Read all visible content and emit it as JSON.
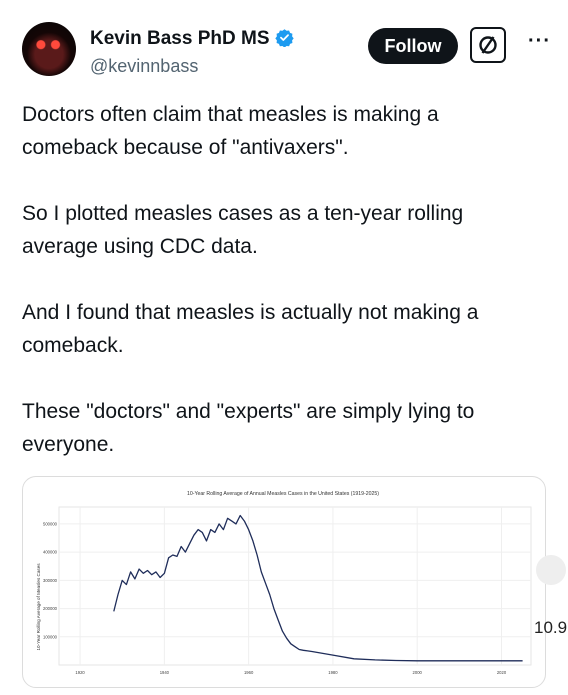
{
  "post": {
    "author_name": "Kevin Bass PhD MS",
    "handle": "@kevinnbass",
    "follow_label": "Follow",
    "paragraphs": [
      "Doctors often claim that measles is making a comeback because of \"antivaxers\".",
      "So I plotted measles cases as a ten-year rolling average using CDC data.",
      "And I found that measles is actually not making a comeback.",
      "These \"doctors\" and \"experts\" are simply lying to everyone."
    ],
    "icons": {
      "verified": "verified-badge-icon",
      "more": "more-options-icon",
      "extra": "slashed-circle-icon"
    },
    "colors": {
      "verified": "#1d9bf0",
      "follow_bg": "#0f1419"
    }
  },
  "overlay": {
    "corner_text": "10.9"
  },
  "chart_data": {
    "type": "line",
    "title": "10-Year Rolling Average of Annual Measles Cases in the United States (1919-2025)",
    "ylabel": "10-Year Rolling Average of Measles Cases",
    "xlabel": "",
    "x_ticks": [
      "1920",
      "1940",
      "1960",
      "1980",
      "2000",
      "2020"
    ],
    "y_ticks": [
      "100000",
      "200000",
      "300000",
      "400000",
      "500000"
    ],
    "xlim": [
      1915,
      2027
    ],
    "ylim": [
      0,
      560000
    ],
    "grid": true,
    "series": [
      {
        "color": "#1f2d5a",
        "x": [
          1928,
          1929,
          1930,
          1931,
          1932,
          1933,
          1934,
          1935,
          1936,
          1937,
          1938,
          1939,
          1940,
          1941,
          1942,
          1943,
          1944,
          1945,
          1946,
          1947,
          1948,
          1949,
          1950,
          1951,
          1952,
          1953,
          1954,
          1955,
          1956,
          1957,
          1958,
          1959,
          1960,
          1961,
          1962,
          1963,
          1964,
          1965,
          1966,
          1967,
          1968,
          1969,
          1970,
          1971,
          1972,
          1973,
          1974,
          1975,
          1980,
          1985,
          1990,
          1995,
          2000,
          2005,
          2010,
          2015,
          2020,
          2025
        ],
        "y": [
          190000,
          250000,
          300000,
          285000,
          330000,
          305000,
          340000,
          325000,
          335000,
          320000,
          330000,
          310000,
          325000,
          380000,
          390000,
          385000,
          420000,
          400000,
          430000,
          460000,
          480000,
          470000,
          440000,
          480000,
          470000,
          500000,
          480000,
          520000,
          510000,
          500000,
          530000,
          510000,
          480000,
          440000,
          390000,
          330000,
          290000,
          250000,
          200000,
          160000,
          120000,
          95000,
          75000,
          65000,
          55000,
          52000,
          50000,
          48000,
          35000,
          22000,
          18000,
          16000,
          15000,
          15000,
          15000,
          15000,
          15000,
          15000
        ]
      }
    ]
  }
}
